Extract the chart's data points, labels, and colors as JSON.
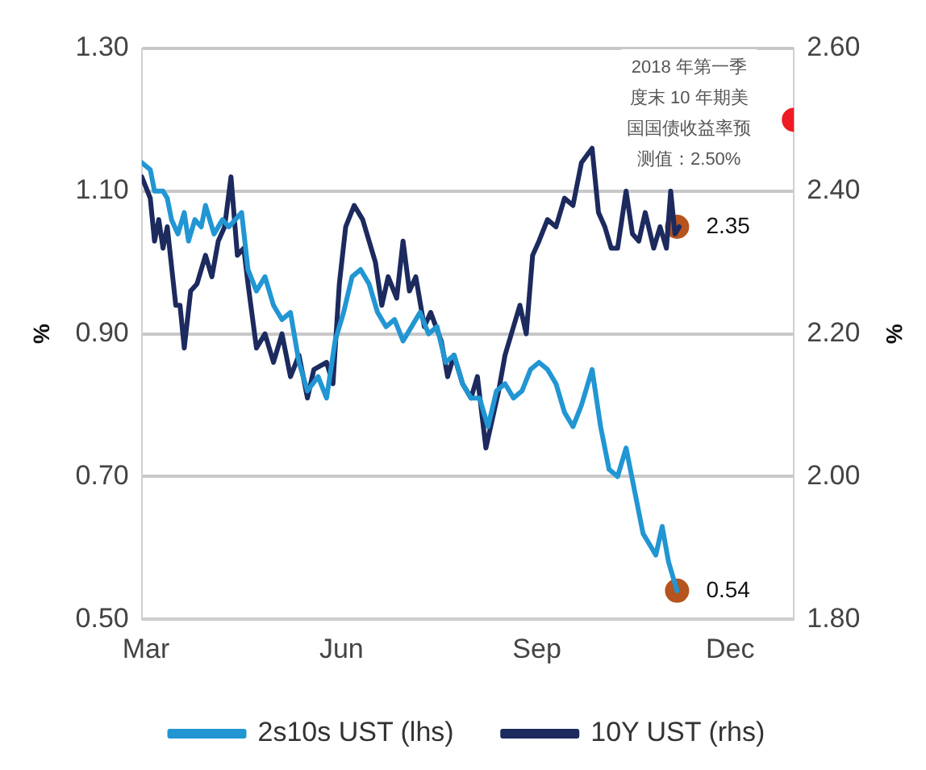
{
  "chart_data": {
    "type": "line",
    "ylabel": "%",
    "y2label": "%",
    "xlim": [
      "--02-27",
      "--12-31"
    ],
    "xticks": [
      {
        "value": "--03-01",
        "label": "Mar"
      },
      {
        "value": "--06-01",
        "label": "Jun"
      },
      {
        "value": "--09-01",
        "label": "Sep"
      },
      {
        "value": "--12-01",
        "label": "Dec"
      }
    ],
    "ylim": [
      0.5,
      1.3
    ],
    "yticks": [
      {
        "value": 0.5,
        "label": "0.50"
      },
      {
        "value": 0.7,
        "label": "0.70"
      },
      {
        "value": 0.9,
        "label": "0.90"
      },
      {
        "value": 1.1,
        "label": "1.10"
      },
      {
        "value": 1.3,
        "label": "1.30"
      }
    ],
    "y2lim": [
      1.8,
      2.6
    ],
    "y2ticks": [
      {
        "value": 1.8,
        "label": "1.80"
      },
      {
        "value": 2.0,
        "label": "2.00"
      },
      {
        "value": 2.2,
        "label": "2.20"
      },
      {
        "value": 2.4,
        "label": "2.40"
      },
      {
        "value": 2.6,
        "label": "2.60"
      }
    ],
    "grid": "y",
    "legend": "bottom",
    "marker": "none",
    "line_style": "solid",
    "series": [
      {
        "name": "2s10s UST (lhs)",
        "color": "#2196d3",
        "axis": "y",
        "x": [
          "--02-27",
          "--03-03",
          "--03-05",
          "--03-09",
          "--03-11",
          "--03-13",
          "--03-16",
          "--03-19",
          "--03-21",
          "--03-24",
          "--03-27",
          "--03-29",
          "--04-02",
          "--04-06",
          "--04-09",
          "--04-12",
          "--04-15",
          "--04-18",
          "--04-22",
          "--04-26",
          "--04-30",
          "--05-04",
          "--05-08",
          "--05-12",
          "--05-16",
          "--05-21",
          "--05-25",
          "--05-29",
          "--06-02",
          "--06-06",
          "--06-10",
          "--06-14",
          "--06-18",
          "--06-22",
          "--06-26",
          "--06-30",
          "--07-04",
          "--07-08",
          "--07-12",
          "--07-16",
          "--07-20",
          "--07-24",
          "--07-28",
          "--08-01",
          "--08-05",
          "--08-09",
          "--08-13",
          "--08-17",
          "--08-21",
          "--08-25",
          "--08-29",
          "--09-02",
          "--09-06",
          "--09-10",
          "--09-14",
          "--09-18",
          "--09-22",
          "--09-27",
          "--10-01",
          "--10-05",
          "--10-09",
          "--10-13",
          "--10-17",
          "--10-19",
          "--10-21",
          "--10-25",
          "--10-27",
          "--10-30",
          "--11-02",
          "--11-04",
          "--11-06"
        ],
        "values": [
          1.14,
          1.13,
          1.1,
          1.1,
          1.09,
          1.06,
          1.04,
          1.07,
          1.03,
          1.06,
          1.05,
          1.08,
          1.04,
          1.06,
          1.05,
          1.06,
          1.07,
          0.99,
          0.96,
          0.98,
          0.94,
          0.92,
          0.93,
          0.86,
          0.82,
          0.84,
          0.81,
          0.89,
          0.93,
          0.98,
          0.99,
          0.97,
          0.93,
          0.91,
          0.92,
          0.89,
          0.91,
          0.93,
          0.9,
          0.91,
          0.86,
          0.87,
          0.83,
          0.81,
          0.81,
          0.77,
          0.82,
          0.83,
          0.81,
          0.82,
          0.85,
          0.86,
          0.85,
          0.83,
          0.79,
          0.77,
          0.8,
          0.85,
          0.77,
          0.71,
          0.7,
          0.74,
          0.68,
          0.65,
          0.62,
          0.6,
          0.59,
          0.63,
          0.58,
          0.56,
          0.54
        ]
      },
      {
        "name": "10Y UST (rhs)",
        "color": "#1c2a5e",
        "axis": "y2",
        "x": [
          "--02-27",
          "--03-03",
          "--03-05",
          "--03-07",
          "--03-09",
          "--03-11",
          "--03-15",
          "--03-17",
          "--03-19",
          "--03-22",
          "--03-25",
          "--03-29",
          "--04-01",
          "--04-04",
          "--04-07",
          "--04-10",
          "--04-13",
          "--04-16",
          "--04-18",
          "--04-22",
          "--04-26",
          "--04-30",
          "--05-04",
          "--05-08",
          "--05-12",
          "--05-16",
          "--05-19",
          "--05-25",
          "--05-28",
          "--05-31",
          "--06-03",
          "--06-07",
          "--06-11",
          "--06-14",
          "--06-17",
          "--06-20",
          "--06-23",
          "--06-27",
          "--06-30",
          "--07-03",
          "--07-06",
          "--07-10",
          "--07-13",
          "--07-18",
          "--07-21",
          "--07-24",
          "--07-28",
          "--08-01",
          "--08-04",
          "--08-08",
          "--08-11",
          "--08-14",
          "--08-17",
          "--08-21",
          "--08-24",
          "--08-27",
          "--08-30",
          "--09-02",
          "--09-06",
          "--09-10",
          "--09-14",
          "--09-18",
          "--09-22",
          "--09-27",
          "--09-30",
          "--10-03",
          "--10-06",
          "--10-09",
          "--10-13",
          "--10-16",
          "--10-19",
          "--10-22",
          "--10-26",
          "--10-29",
          "--11-01",
          "--11-03",
          "--11-05",
          "--11-07"
        ],
        "values": [
          2.42,
          2.39,
          2.33,
          2.36,
          2.32,
          2.35,
          2.24,
          2.24,
          2.18,
          2.26,
          2.27,
          2.31,
          2.28,
          2.33,
          2.35,
          2.42,
          2.31,
          2.32,
          2.27,
          2.18,
          2.2,
          2.16,
          2.2,
          2.14,
          2.17,
          2.11,
          2.15,
          2.16,
          2.13,
          2.27,
          2.35,
          2.38,
          2.36,
          2.33,
          2.3,
          2.24,
          2.28,
          2.25,
          2.33,
          2.26,
          2.28,
          2.21,
          2.23,
          2.19,
          2.14,
          2.17,
          2.13,
          2.11,
          2.14,
          2.04,
          2.08,
          2.12,
          2.17,
          2.21,
          2.24,
          2.2,
          2.31,
          2.33,
          2.36,
          2.35,
          2.39,
          2.38,
          2.44,
          2.46,
          2.37,
          2.35,
          2.32,
          2.32,
          2.4,
          2.34,
          2.33,
          2.37,
          2.32,
          2.35,
          2.32,
          2.4,
          2.34,
          2.35
        ]
      },
      {
        "type": "scatter",
        "marker": "circle",
        "color": "#b5541f",
        "axis": "y2",
        "x": [
          "--11-06"
        ],
        "values": [
          2.35
        ],
        "value_labels": [
          "2.35"
        ]
      },
      {
        "type": "scatter",
        "marker": "circle",
        "color": "#b5541f",
        "axis": "y",
        "x": [
          "--11-06"
        ],
        "values": [
          0.54
        ],
        "value_labels": [
          "0.54"
        ]
      },
      {
        "type": "scatter",
        "marker": "circle",
        "color": "#ee1c25",
        "axis": "y2",
        "x": [
          "--12-31"
        ],
        "values": [
          2.5
        ]
      }
    ],
    "annotations": [
      "2018 年第一季度末 10 年期美国国债收益率预测值：2.50%"
    ]
  }
}
